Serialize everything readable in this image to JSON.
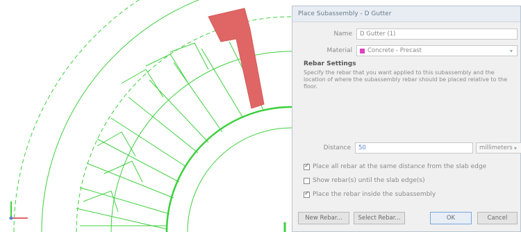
{
  "dialog": {
    "title": "Place Subassembly - D Gutter",
    "fields": {
      "name_label": "Name",
      "name_value": "D Gutter (1)",
      "material_label": "Material",
      "material_value": "Concrete - Precast"
    },
    "section_title": "Rebar Settings",
    "description": "Specify the rebar that you want applied to this subassembly and the location of where the subassembly rebar should be placed relative to the floor.",
    "distance_label": "Distance",
    "distance_value": "50",
    "distance_unit": "millimeters",
    "options": [
      {
        "label": "Place all rebar at the same distance from the slab edge",
        "checked": true
      },
      {
        "label": "Show rebar(s) until the slab edge(s)",
        "checked": false
      },
      {
        "label": "Place the rebar inside the subassembly",
        "checked": true
      }
    ],
    "buttons": {
      "new_rebar": "New Rebar...",
      "select_rebar": "Select Rebar...",
      "ok": "OK",
      "cancel": "Cancel"
    }
  },
  "colors": {
    "linework": "#3cd03c",
    "highlight": "#e06666",
    "dialog_bg": "#f0f0f0"
  }
}
